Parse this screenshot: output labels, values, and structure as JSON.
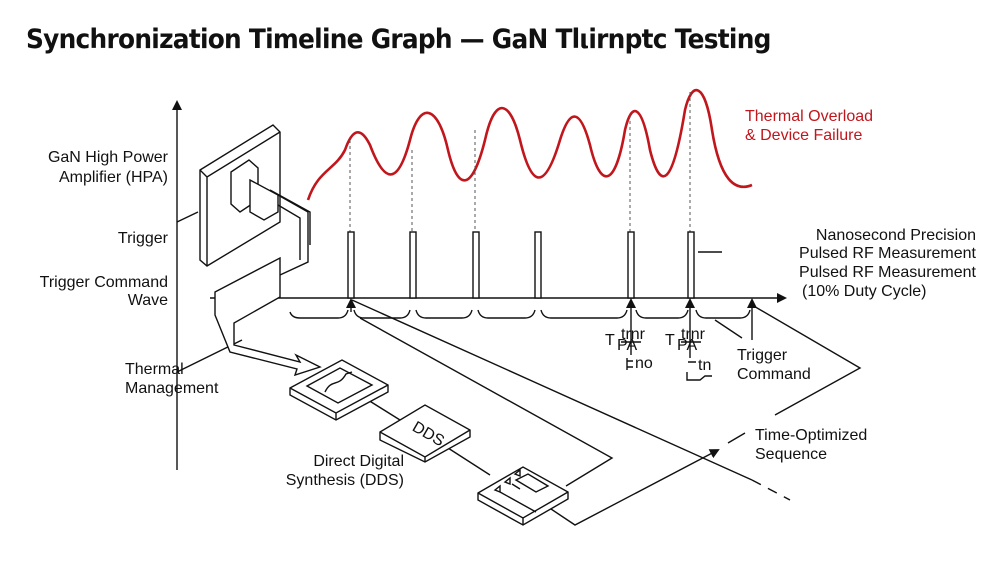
{
  "title": "Synchronization Timeline Graph — GaN Tlιirnptc Testing",
  "labels": {
    "hpa_1": "GaN High Power",
    "hpa_2": "Amplifier (HPA)",
    "trigger": "Trigger",
    "tcw_1": "Trigger Command",
    "tcw_2": "Wave",
    "thermal_1": "Thermal",
    "thermal_2": "Management",
    "overload_1": "Thermal Overload",
    "overload_2": "& Device Failure",
    "nano_1": "Nanosecond Precision",
    "nano_2": "Pulsed RF Measurement",
    "nano_3": "Pulsed RF Measurement",
    "nano_4": "(10% Duty Cycle)",
    "trigcmd_1": "Trigger",
    "trigcmd_2": "Command",
    "tos_1": "Time-Optimized",
    "tos_2": "Sequence",
    "dds_1": "Direct Digital",
    "dds_2": "Synthesis (DDS)",
    "dds_block": "DDS",
    "tpa_1": "T",
    "tpa_1_sub": "PA",
    "tpa_1_sup": "trnr",
    "tpa_1_note": "no",
    "tpa_2": "T",
    "tpa_2_sub": "PA",
    "tpa_2_sup": "trnr",
    "tpa_2_note": "tn"
  },
  "colors": {
    "thermal_wave": "#c0161c",
    "lines": "#111111"
  }
}
